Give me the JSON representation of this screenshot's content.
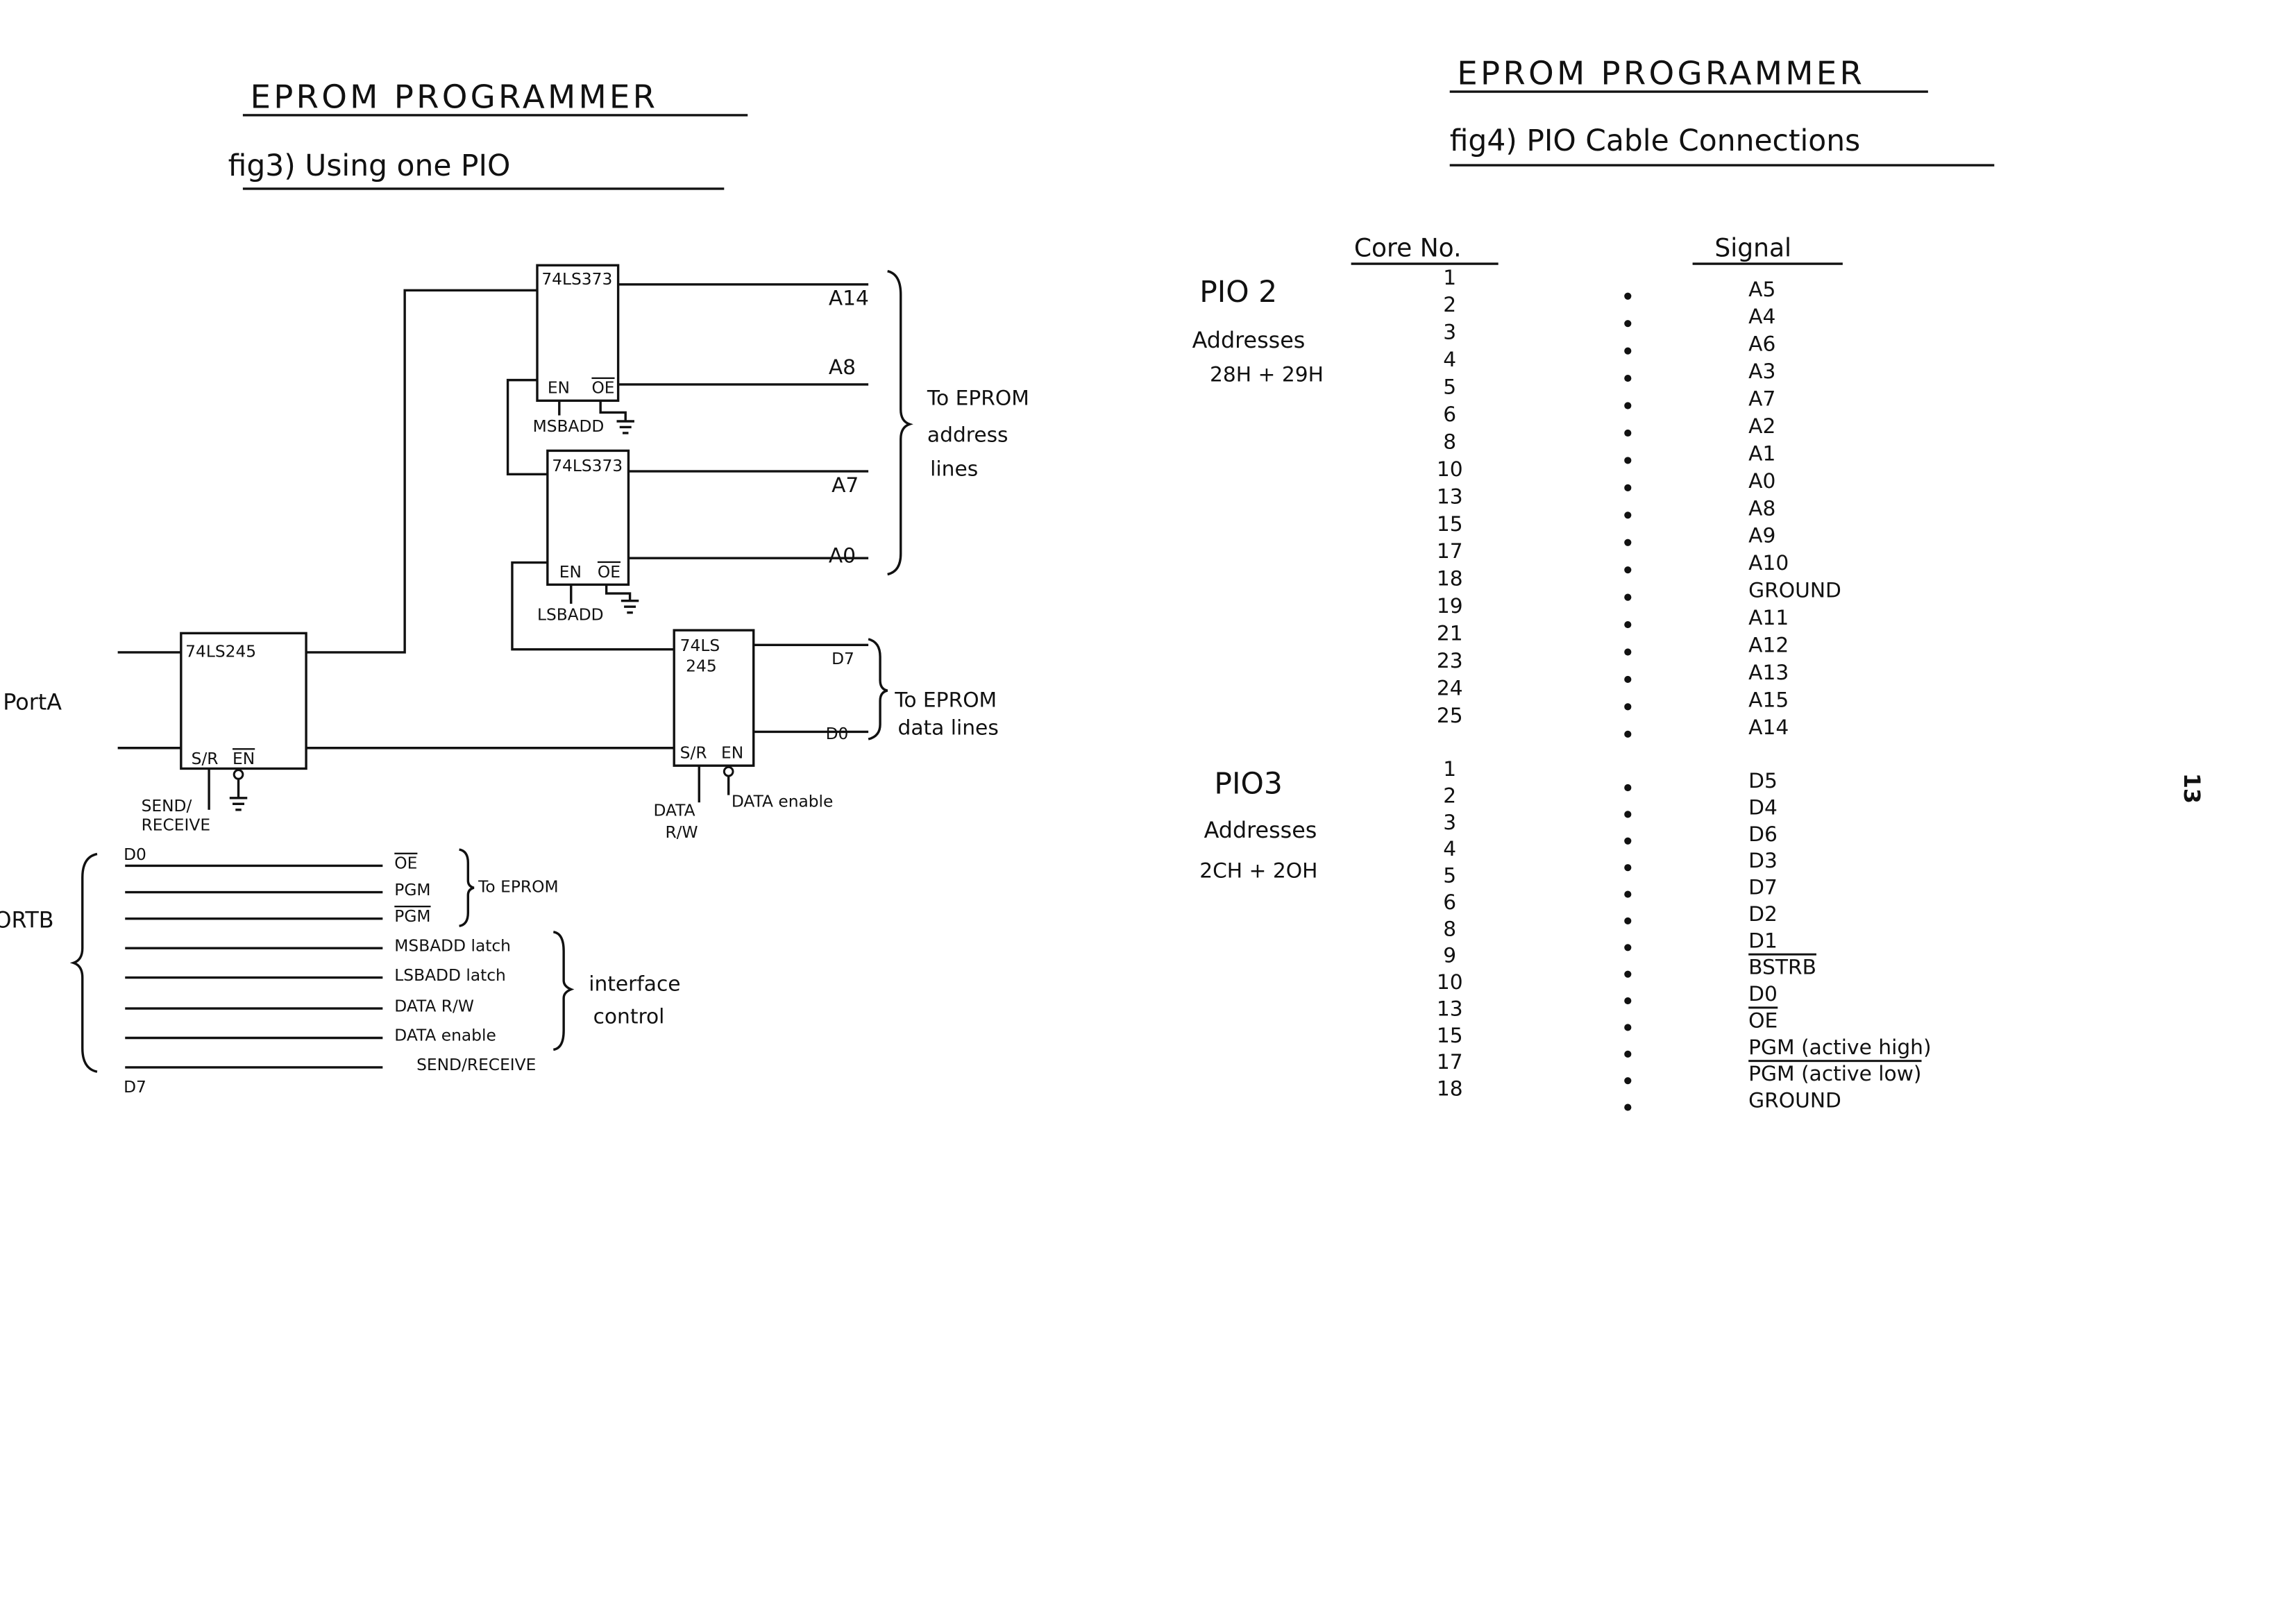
{
  "left": {
    "title": "EPROM PROGRAMMER",
    "subtitle": "fig3) Using one PIO",
    "chips": {
      "latch_msb": "74LS373",
      "latch_lsb": "74LS373",
      "buffer_in": "74LS245",
      "buffer_data_1": "74LS",
      "buffer_data_2": "245"
    },
    "pins": {
      "en": "EN",
      "oe": "OE",
      "sr": "S/R",
      "sr_bar": "S",
      "rw": "R/W"
    },
    "address_lines": {
      "a14": "A14",
      "a8": "A8",
      "a7": "A7",
      "a0": "A0"
    },
    "address_note": [
      "To EPROM",
      "address",
      "lines"
    ],
    "msbadd": "MSBADD",
    "lsbadd": "LSBADD",
    "data_lines": {
      "d7": "D7",
      "d0": "D0"
    },
    "data_note": [
      "To EPROM",
      "data lines"
    ],
    "port_a": "PortA",
    "send_receive": [
      "SEND/",
      "RECEIVE"
    ],
    "data_rw": [
      "DATA",
      "R/W"
    ],
    "data_enable": "DATA enable",
    "port_b": "ORTB",
    "port_b_d0": "D0",
    "port_b_d7": "D7",
    "port_b_lines": [
      {
        "label": "OE",
        "overline": true
      },
      {
        "label": "PGM",
        "overline": false
      },
      {
        "label": "PGM",
        "overline": true
      },
      {
        "label": "MSBADD latch",
        "overline": false
      },
      {
        "label": "LSBADD latch",
        "overline": false
      },
      {
        "label": "DATA R/W",
        "overline": false
      },
      {
        "label": "DATA enable",
        "overline": false
      },
      {
        "label": "SEND/RECEIVE",
        "overline": false
      }
    ],
    "to_eprom": "To EPROM",
    "interface_control": [
      "interface",
      "control"
    ]
  },
  "right": {
    "title": "EPROM PROGRAMMER",
    "subtitle": "fig4) PIO Cable Connections",
    "col_core": "Core No.",
    "col_signal": "Signal",
    "groups": [
      {
        "name": "PIO 2",
        "addresses_label": "Addresses",
        "addresses": "28H + 29H",
        "rows": [
          [
            "1",
            "A5"
          ],
          [
            "2",
            "A4"
          ],
          [
            "3",
            "A6"
          ],
          [
            "4",
            "A3"
          ],
          [
            "5",
            "A7"
          ],
          [
            "6",
            "A2"
          ],
          [
            "8",
            "A1"
          ],
          [
            "10",
            "A0"
          ],
          [
            "13",
            "A8"
          ],
          [
            "15",
            "A9"
          ],
          [
            "17",
            "A10"
          ],
          [
            "18",
            "GROUND"
          ],
          [
            "19",
            "A11"
          ],
          [
            "21",
            "A12"
          ],
          [
            "23",
            "A13"
          ],
          [
            "24",
            "A15"
          ],
          [
            "25",
            "A14"
          ]
        ]
      },
      {
        "name": "PIO3",
        "addresses_label": "Addresses",
        "addresses": "2CH + 2OH",
        "rows": [
          [
            "1",
            "D5"
          ],
          [
            "2",
            "D4"
          ],
          [
            "3",
            "D6"
          ],
          [
            "4",
            "D3"
          ],
          [
            "5",
            "D7"
          ],
          [
            "6",
            "D2"
          ],
          [
            "8",
            "D1"
          ],
          [
            "9",
            "BSTRB"
          ],
          [
            "10",
            "D0"
          ],
          [
            "13",
            "OE"
          ],
          [
            "15",
            "PGM (active high)"
          ],
          [
            "17",
            "PGM (active low)"
          ],
          [
            "18",
            "GROUND"
          ]
        ],
        "overline_signals": [
          "BSTRB",
          "OE",
          "PGM (active low)"
        ]
      }
    ]
  },
  "page_number": "13"
}
